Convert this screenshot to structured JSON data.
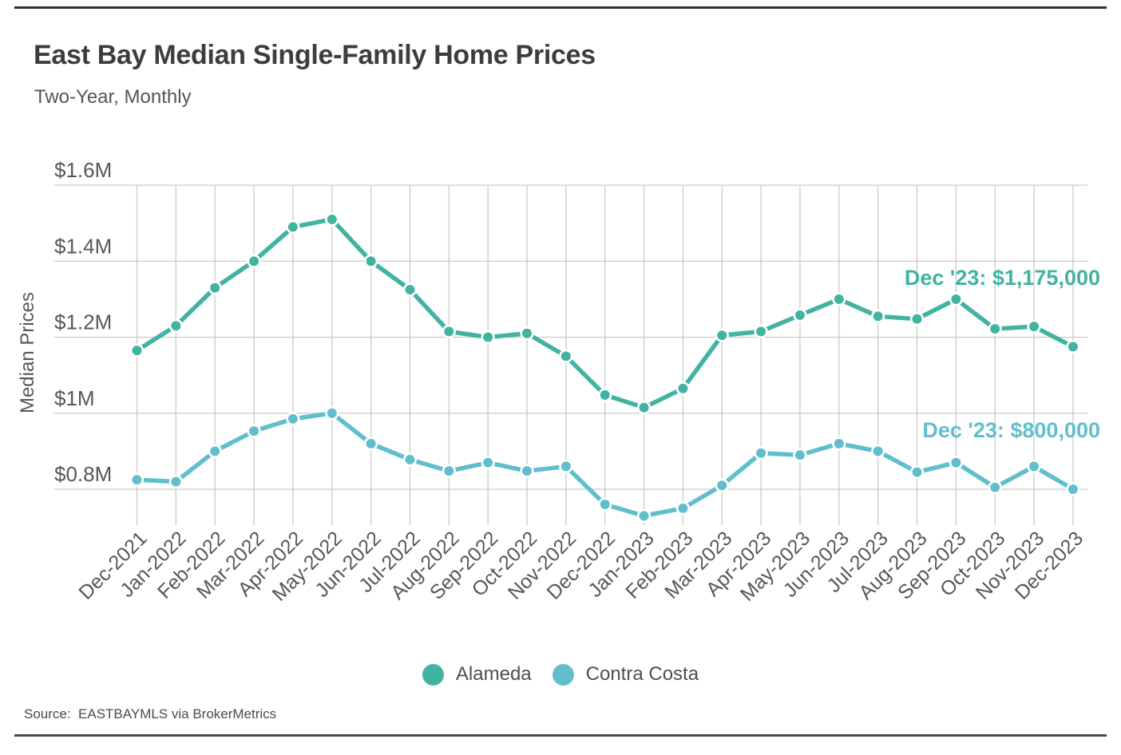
{
  "header": {
    "title": "East Bay Median Single-Family Home Prices",
    "subtitle": "Two-Year, Monthly"
  },
  "chart_data": {
    "type": "line",
    "title": "East Bay Median Single-Family Home Prices",
    "subtitle": "Two-Year, Monthly",
    "ylabel": "Median Prices",
    "unit": "millions_usd",
    "grid": true,
    "legend_position": "bottom",
    "ylim": [
      0.7,
      1.6
    ],
    "x_categories": [
      "Dec-2021",
      "Jan-2022",
      "Feb-2022",
      "Mar-2022",
      "Apr-2022",
      "May-2022",
      "Jun-2022",
      "Jul-2022",
      "Aug-2022",
      "Sep-2022",
      "Oct-2022",
      "Nov-2022",
      "Dec-2022",
      "Jan-2023",
      "Feb-2023",
      "Mar-2023",
      "Apr-2023",
      "May-2023",
      "Jun-2023",
      "Jul-2023",
      "Aug-2023",
      "Sep-2023",
      "Oct-2023",
      "Nov-2023",
      "Dec-2023"
    ],
    "y_ticks": [
      {
        "label": "$1.6M",
        "value": 1.6
      },
      {
        "label": "$1.4M",
        "value": 1.4
      },
      {
        "label": "$1.2M",
        "value": 1.2
      },
      {
        "label": "$1M",
        "value": 1.0
      },
      {
        "label": "$0.8M",
        "value": 0.8
      }
    ],
    "series": [
      {
        "name": "Alameda",
        "color": "#43b3a1",
        "values": [
          1.165,
          1.23,
          1.33,
          1.4,
          1.49,
          1.51,
          1.4,
          1.325,
          1.215,
          1.2,
          1.21,
          1.15,
          1.048,
          1.015,
          1.065,
          1.205,
          1.215,
          1.258,
          1.3,
          1.255,
          1.248,
          1.3,
          1.222,
          1.228,
          1.175
        ]
      },
      {
        "name": "Contra Costa",
        "color": "#61bfcd",
        "values": [
          0.825,
          0.82,
          0.9,
          0.953,
          0.985,
          1.0,
          0.92,
          0.878,
          0.848,
          0.87,
          0.848,
          0.86,
          0.76,
          0.73,
          0.75,
          0.81,
          0.895,
          0.89,
          0.92,
          0.9,
          0.845,
          0.87,
          0.805,
          0.86,
          0.8
        ]
      }
    ],
    "annotations": [
      {
        "series": "Alameda",
        "text": "Dec '23: $1,175,000"
      },
      {
        "series": "Contra Costa",
        "text": "Dec '23: $800,000"
      }
    ]
  },
  "footer": {
    "source": "Source:  EASTBAYMLS via BrokerMetrics"
  },
  "colors": {
    "alameda": "#43b3a1",
    "contra_costa": "#61bfcd",
    "grid": "#cacaca",
    "axis_text": "#56575b",
    "title_text": "#3d3d3d"
  }
}
